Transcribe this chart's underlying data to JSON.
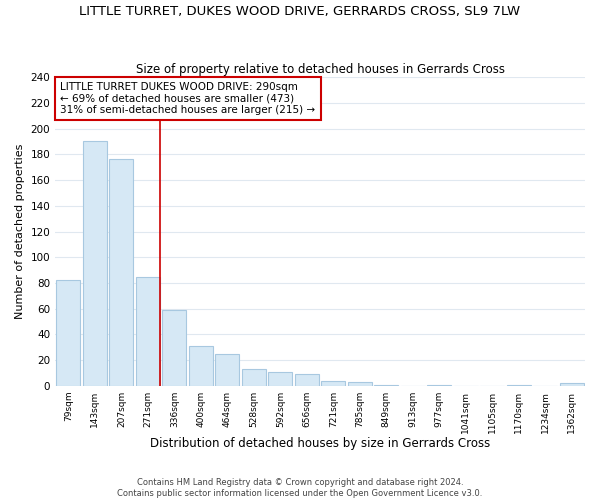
{
  "title": "LITTLE TURRET, DUKES WOOD DRIVE, GERRARDS CROSS, SL9 7LW",
  "subtitle": "Size of property relative to detached houses in Gerrards Cross",
  "xlabel": "Distribution of detached houses by size in Gerrards Cross",
  "ylabel": "Number of detached properties",
  "categories": [
    "79sqm",
    "143sqm",
    "207sqm",
    "271sqm",
    "336sqm",
    "400sqm",
    "464sqm",
    "528sqm",
    "592sqm",
    "656sqm",
    "721sqm",
    "785sqm",
    "849sqm",
    "913sqm",
    "977sqm",
    "1041sqm",
    "1105sqm",
    "1170sqm",
    "1234sqm",
    "1362sqm"
  ],
  "values": [
    82,
    190,
    176,
    85,
    59,
    31,
    25,
    13,
    11,
    9,
    4,
    3,
    1,
    0,
    1,
    0,
    0,
    1,
    0,
    2
  ],
  "bar_color": "#d6e8f5",
  "bar_edge_color": "#a8c8e0",
  "red_line_index": 3,
  "annotation_line1": "LITTLE TURRET DUKES WOOD DRIVE: 290sqm",
  "annotation_line2": "← 69% of detached houses are smaller (473)",
  "annotation_line3": "31% of semi-detached houses are larger (215) →",
  "annotation_box_color": "#ffffff",
  "annotation_box_edge_color": "#cc0000",
  "red_line_color": "#cc0000",
  "footer_line1": "Contains HM Land Registry data © Crown copyright and database right 2024.",
  "footer_line2": "Contains public sector information licensed under the Open Government Licence v3.0.",
  "title_fontsize": 9.5,
  "subtitle_fontsize": 8.5,
  "ylabel_fontsize": 8,
  "xlabel_fontsize": 8.5,
  "background_color": "#ffffff",
  "grid_color": "#e0e8f0",
  "ylim": [
    0,
    240
  ],
  "yticks": [
    0,
    20,
    40,
    60,
    80,
    100,
    120,
    140,
    160,
    180,
    200,
    220,
    240
  ]
}
